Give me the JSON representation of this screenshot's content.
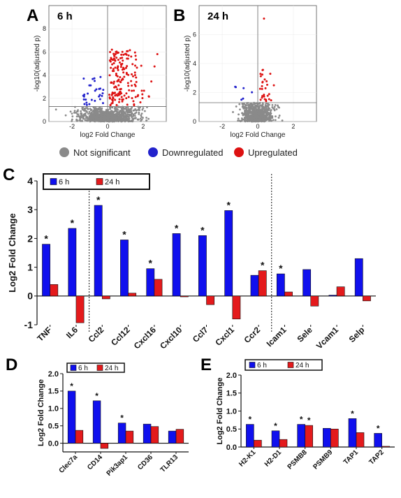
{
  "panel_letters": {
    "a": "A",
    "b": "B",
    "c": "C",
    "d": "D",
    "e": "E"
  },
  "colors": {
    "blue": "#1010ee",
    "red": "#e41a1c",
    "grey": "#8a8a8a",
    "volcano_blue": "#2222cc",
    "volcano_red": "#dd1111"
  },
  "volcano_legend": [
    {
      "label": "Not significant",
      "color": "#8a8a8a"
    },
    {
      "label": "Downregulated",
      "color": "#2222cc"
    },
    {
      "label": "Upregulated",
      "color": "#dd1111"
    }
  ],
  "chart_data": [
    {
      "id": "A",
      "type": "scatter",
      "title": "6 h",
      "xlabel": "log2 Fold Change",
      "ylabel": "-log10(adjusted p)",
      "xlim": [
        -3.3,
        3.3
      ],
      "ylim": [
        0,
        10
      ],
      "xticks": [
        "-2",
        "0",
        "2"
      ],
      "yticks": [
        "0",
        "2",
        "4",
        "6",
        "8"
      ],
      "xticks_values": [
        -2,
        0,
        2
      ],
      "yticks_values": [
        0,
        2,
        4,
        6,
        8
      ],
      "significance_threshold": 1.3,
      "groups": {
        "not_significant": "grey",
        "downregulated": "blue",
        "upregulated": "red"
      },
      "distribution": {
        "grey_spread": 1.5,
        "blue": 30,
        "red": 170
      }
    },
    {
      "id": "B",
      "type": "scatter",
      "title": "24 h",
      "xlabel": "log2 Fold Change",
      "ylabel": "-log10(adjusted p)",
      "xlim": [
        -3.3,
        3.3
      ],
      "ylim": [
        0,
        8
      ],
      "xticks": [
        "-2",
        "0",
        "2"
      ],
      "yticks": [
        "0",
        "2",
        "4",
        "6"
      ],
      "xticks_values": [
        -2,
        0,
        2
      ],
      "yticks_values": [
        0,
        2,
        4,
        6
      ],
      "significance_threshold": 1.3,
      "groups": {
        "not_significant": "grey",
        "downregulated": "blue",
        "upregulated": "red"
      },
      "distribution": {
        "grey_spread": 0.75,
        "blue": 6,
        "red": 28
      }
    },
    {
      "id": "C",
      "type": "bar",
      "ylabel": "Log2 Fold Change",
      "ylim": [
        -1,
        4
      ],
      "yticks": [
        "-1",
        "0",
        "1",
        "2",
        "3",
        "4"
      ],
      "yticks_values": [
        -1,
        0,
        1,
        2,
        3,
        4
      ],
      "categories": [
        "TNF",
        "IL6",
        "Ccl2",
        "Ccl12",
        "Cxcl16",
        "Cxcl10",
        "Ccl7",
        "Cxcl1",
        "Ccr2",
        "Icam1",
        "Sele",
        "Vcam1",
        "Selp"
      ],
      "series": [
        {
          "name": "6 h",
          "color": "#1010ee",
          "values": [
            1.8,
            2.35,
            3.15,
            1.95,
            0.95,
            2.17,
            2.1,
            2.97,
            0.72,
            0.77,
            0.92,
            0.03,
            1.3
          ],
          "significant": [
            1,
            1,
            1,
            1,
            1,
            1,
            1,
            1,
            0,
            1,
            0,
            0,
            0
          ]
        },
        {
          "name": "24 h",
          "color": "#e41a1c",
          "values": [
            0.4,
            -0.93,
            -0.1,
            0.1,
            0.58,
            -0.03,
            -0.3,
            -0.8,
            0.88,
            0.14,
            -0.35,
            0.32,
            -0.17
          ],
          "significant": [
            0,
            0,
            0,
            0,
            0,
            0,
            0,
            0,
            1,
            0,
            0,
            0,
            0
          ]
        }
      ],
      "separators_after": [
        "IL6",
        "Ccr2"
      ]
    },
    {
      "id": "D",
      "type": "bar",
      "ylabel": "Log2 Fold Change",
      "ylim": [
        -0.25,
        2
      ],
      "yticks": [
        "0.0",
        "0.5",
        "1.0",
        "1.5",
        "2.0"
      ],
      "yticks_values": [
        0,
        0.5,
        1.0,
        1.5,
        2.0
      ],
      "categories": [
        "Clec7a",
        "CD14",
        "Pik3ap1",
        "CD36",
        "TLR13"
      ],
      "series": [
        {
          "name": "6 h",
          "color": "#1010ee",
          "values": [
            1.5,
            1.22,
            0.58,
            0.55,
            0.35
          ],
          "significant": [
            1,
            1,
            1,
            0,
            0
          ]
        },
        {
          "name": "24 h",
          "color": "#e41a1c",
          "values": [
            0.37,
            -0.15,
            0.35,
            0.48,
            0.4
          ],
          "significant": [
            0,
            0,
            0,
            0,
            0
          ]
        }
      ]
    },
    {
      "id": "E",
      "type": "bar",
      "ylabel": "Log2 Fold Change",
      "ylim": [
        0,
        2
      ],
      "yticks": [
        "0.0",
        "0.5",
        "1.0",
        "1.5",
        "2.0"
      ],
      "yticks_values": [
        0,
        0.5,
        1.0,
        1.5,
        2.0
      ],
      "categories": [
        "H2-K1",
        "H2-D1",
        "PSMB8",
        "PSMB9",
        "TAP1",
        "TAP2"
      ],
      "series": [
        {
          "name": "6 h",
          "color": "#1010ee",
          "values": [
            0.63,
            0.45,
            0.63,
            0.52,
            0.79,
            0.38
          ],
          "significant": [
            1,
            1,
            1,
            0,
            1,
            1
          ]
        },
        {
          "name": "24 h",
          "color": "#e41a1c",
          "values": [
            0.19,
            0.21,
            0.6,
            0.5,
            0.4,
            0.02
          ],
          "significant": [
            0,
            0,
            1,
            0,
            0,
            0
          ]
        }
      ]
    }
  ],
  "significance_marker": "*"
}
